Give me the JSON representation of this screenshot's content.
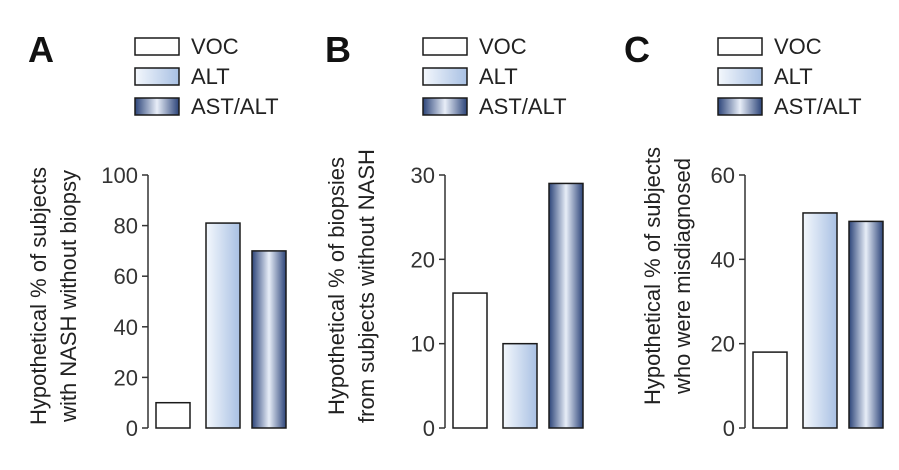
{
  "colors": {
    "VOC": "#ffffff",
    "ALT_light": "#f4f8fd",
    "ALT_dark": "#a8c0e3",
    "ASTALT_light": "#e8eef8",
    "ASTALT_dark": "#2c4479",
    "stroke": "#1a1a1a"
  },
  "chart_data": [
    {
      "type": "bar",
      "panel": "A",
      "categories": [
        "VOC",
        "ALT",
        "AST/ALT"
      ],
      "values": [
        10,
        81,
        70
      ],
      "legend": [
        "VOC",
        "ALT",
        "AST/ALT"
      ],
      "legend_position": "top",
      "ylabel_lines": [
        "Hypothetical % of subjects",
        "with NASH without biopsy"
      ],
      "ylim": [
        0,
        100
      ],
      "yticks": [
        0,
        20,
        40,
        60,
        80,
        100
      ],
      "ytick_labels": [
        "0",
        "20",
        "40",
        "60",
        "80",
        "100"
      ],
      "grid": false
    },
    {
      "type": "bar",
      "panel": "B",
      "categories": [
        "VOC",
        "ALT",
        "AST/ALT"
      ],
      "values": [
        16,
        10,
        29
      ],
      "legend": [
        "VOC",
        "ALT",
        "AST/ALT"
      ],
      "legend_position": "top",
      "ylabel_lines": [
        "Hypothetical % of biopsies",
        "from subjects without NASH"
      ],
      "ylim": [
        0,
        30
      ],
      "yticks": [
        0,
        10,
        20,
        30
      ],
      "ytick_labels": [
        "0",
        "10",
        "20",
        "30"
      ],
      "grid": false
    },
    {
      "type": "bar",
      "panel": "C",
      "categories": [
        "VOC",
        "ALT",
        "AST/ALT"
      ],
      "values": [
        18,
        51,
        49
      ],
      "legend": [
        "VOC",
        "ALT",
        "AST/ALT"
      ],
      "legend_position": "top",
      "ylabel_lines": [
        "Hypothetical % of subjects",
        "who were misdiagnosed"
      ],
      "ylim": [
        0,
        60
      ],
      "yticks": [
        0,
        20,
        40,
        60
      ],
      "ytick_labels": [
        "0",
        "20",
        "40",
        "60"
      ],
      "grid": false
    }
  ]
}
